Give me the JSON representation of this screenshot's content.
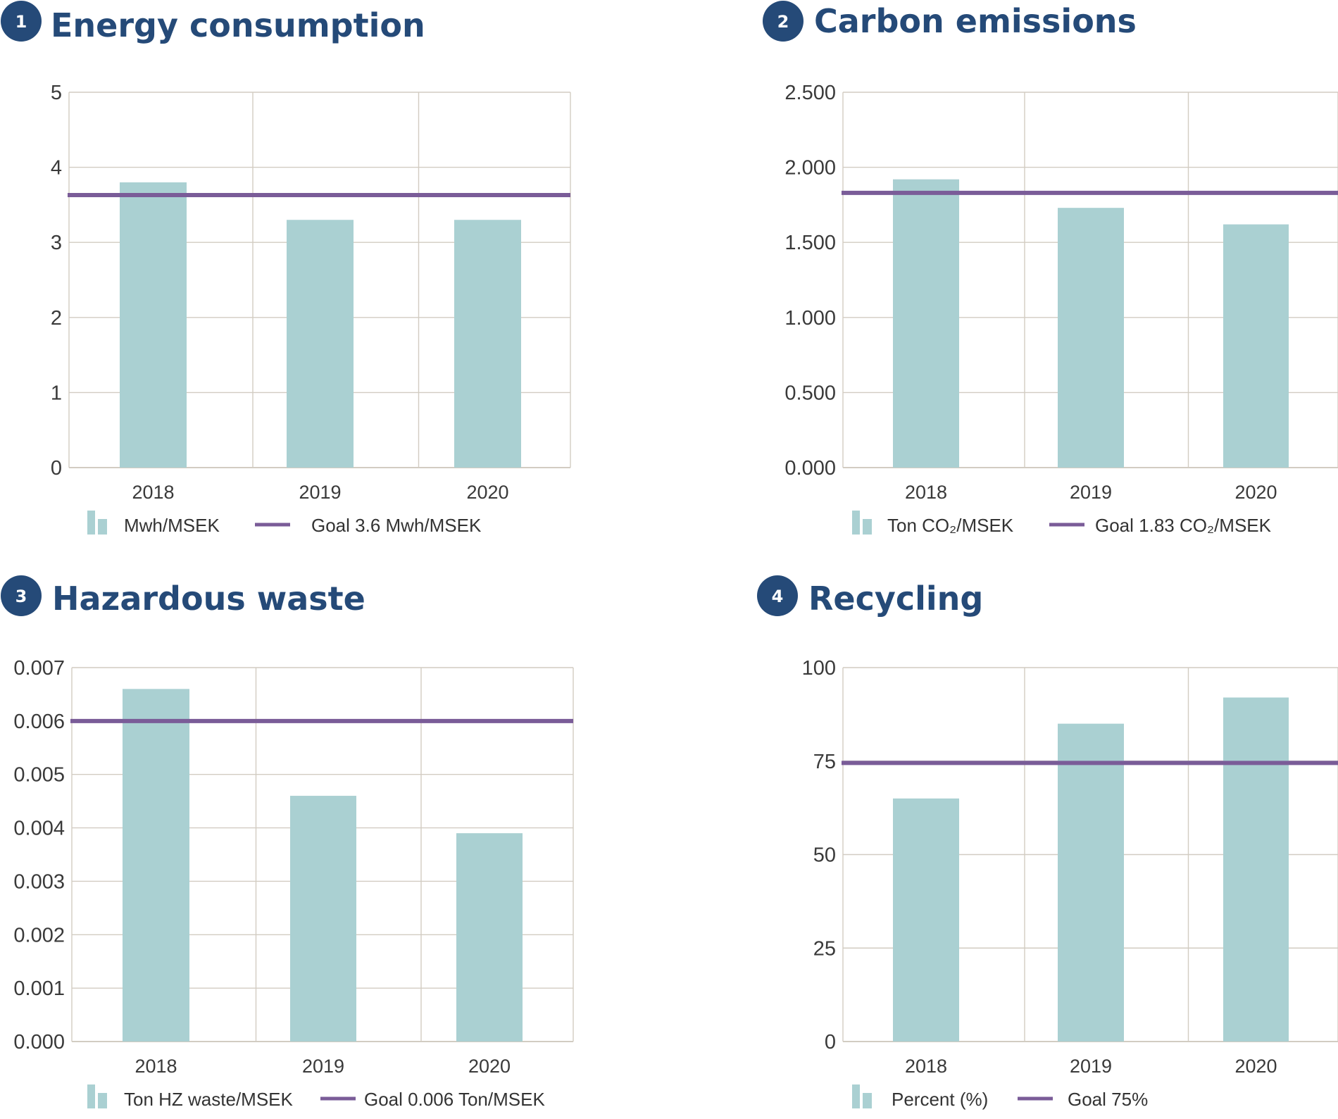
{
  "colors": {
    "bar": "#aad0d2",
    "goal": "#7a5c98",
    "grid": "#d2ccc2",
    "badge": "#254a78",
    "title": "#254a78",
    "tick": "#3a3a3a"
  },
  "chart_data": [
    {
      "number": "1",
      "type": "bar",
      "title": "Energy consumption",
      "categories": [
        "2018",
        "2019",
        "2020"
      ],
      "values": [
        3.8,
        3.3,
        3.3
      ],
      "ylim": [
        0,
        5
      ],
      "yticks": [
        "0",
        "1",
        "2",
        "3",
        "4",
        "5"
      ],
      "goal": 3.63,
      "grid": true,
      "legend_position": "bottom-left",
      "legend": {
        "bar": "Mwh/MSEK",
        "line": "Goal 3.6 Mwh/MSEK"
      }
    },
    {
      "number": "2",
      "type": "bar",
      "title": "Carbon emissions",
      "categories": [
        "2018",
        "2019",
        "2020"
      ],
      "values": [
        1.92,
        1.73,
        1.62
      ],
      "ylim": [
        0,
        2.5
      ],
      "yticks": [
        "0.000",
        "0.500",
        "1.000",
        "1.500",
        "2.000",
        "2.500"
      ],
      "goal": 1.83,
      "grid": true,
      "legend_position": "bottom-left",
      "legend": {
        "bar": "Ton CO₂/MSEK",
        "line": "Goal 1.83 CO₂/MSEK"
      }
    },
    {
      "number": "3",
      "type": "bar",
      "title": "Hazardous waste",
      "categories": [
        "2018",
        "2019",
        "2020"
      ],
      "values": [
        0.0066,
        0.0046,
        0.0039
      ],
      "ylim": [
        0,
        0.007
      ],
      "yticks": [
        "0.000",
        "0.001",
        "0.002",
        "0.003",
        "0.004",
        "0.005",
        "0.006",
        "0.007"
      ],
      "goal": 0.006,
      "grid": true,
      "legend_position": "bottom-left",
      "legend": {
        "bar": "Ton HZ waste/MSEK",
        "line": "Goal 0.006 Ton/MSEK"
      }
    },
    {
      "number": "4",
      "type": "bar",
      "title": "Recycling",
      "categories": [
        "2018",
        "2019",
        "2020"
      ],
      "values": [
        65,
        85,
        92
      ],
      "ylim": [
        0,
        100
      ],
      "yticks": [
        "0",
        "25",
        "50",
        "75",
        "100"
      ],
      "goal": 74.5,
      "grid": true,
      "legend_position": "bottom-left",
      "legend": {
        "bar": "Percent (%)",
        "line": "Goal 75%"
      }
    }
  ]
}
